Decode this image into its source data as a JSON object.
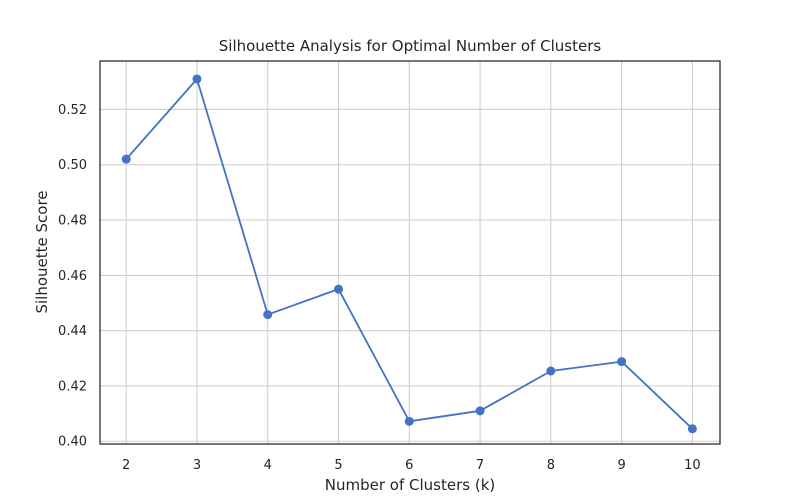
{
  "chart_data": {
    "type": "line",
    "title": "Silhouette Analysis for Optimal Number of Clusters",
    "xlabel": "Number of Clusters (k)",
    "ylabel": "Silhouette Score",
    "x": [
      2,
      3,
      4,
      5,
      6,
      7,
      8,
      9,
      10
    ],
    "series": [
      {
        "values": [
          0.502,
          0.531,
          0.4458,
          0.455,
          0.4072,
          0.411,
          0.4254,
          0.4288,
          0.4045
        ],
        "color": "#4472c4",
        "marker": "circle"
      }
    ],
    "xlim": [
      1.63,
      10.39
    ],
    "ylim": [
      0.399,
      0.5375
    ],
    "xticks": [
      "2",
      "3",
      "4",
      "5",
      "6",
      "7",
      "8",
      "9",
      "10"
    ],
    "yticks": [
      "0.40",
      "0.42",
      "0.44",
      "0.46",
      "0.48",
      "0.50",
      "0.52"
    ],
    "grid": true,
    "legend": false
  }
}
